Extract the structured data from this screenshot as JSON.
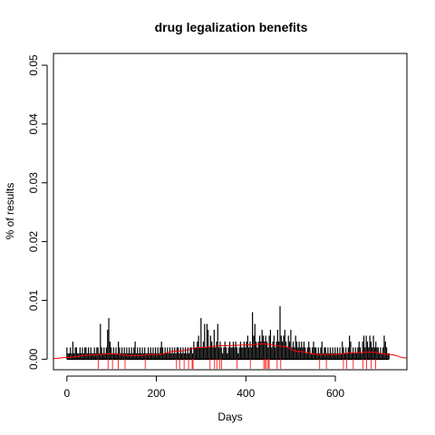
{
  "chart_data": {
    "type": "bar",
    "title": "drug legalization benefits",
    "xlabel": "Days",
    "ylabel": "% of results",
    "xlim": [
      -30,
      760
    ],
    "ylim": [
      -0.0018,
      0.052
    ],
    "x_ticks": [
      0,
      200,
      400,
      600
    ],
    "y_ticks": [
      0.0,
      0.01,
      0.02,
      0.03,
      0.04,
      0.05
    ],
    "y_tick_labels": [
      "0.00",
      "0.01",
      "0.02",
      "0.03",
      "0.04",
      "0.05"
    ],
    "colors": {
      "bars": "#000000",
      "smooth_line": "#ff0000",
      "rug": "#ff0000",
      "axes": "#000000"
    },
    "bars": {
      "x_start": 0,
      "x_end": 720,
      "values": [
        0.002,
        0.001,
        0.001,
        0.002,
        0.001,
        0.003,
        0.001,
        0.002,
        0.002,
        0.001,
        0.001,
        0.002,
        0.001,
        0.002,
        0.001,
        0.002,
        0.002,
        0.001,
        0.002,
        0.001,
        0.002,
        0.001,
        0.001,
        0.002,
        0.001,
        0.002,
        0.002,
        0.001,
        0.006,
        0.002,
        0.001,
        0.002,
        0.001,
        0.002,
        0.005,
        0.007,
        0.003,
        0.002,
        0.001,
        0.002,
        0.001,
        0.002,
        0.001,
        0.003,
        0.002,
        0.001,
        0.002,
        0.001,
        0.002,
        0.001,
        0.002,
        0.001,
        0.002,
        0.001,
        0.002,
        0.001,
        0.002,
        0.003,
        0.001,
        0.002,
        0.001,
        0.002,
        0.001,
        0.002,
        0.001,
        0.002,
        0.001,
        0.001,
        0.002,
        0.001,
        0.002,
        0.001,
        0.002,
        0.001,
        0.002,
        0.001,
        0.002,
        0.001,
        0.002,
        0.003,
        0.002,
        0.001,
        0.002,
        0.001,
        0.002,
        0.001,
        0.002,
        0.001,
        0.002,
        0.001,
        0.002,
        0.001,
        0.002,
        0.002,
        0.001,
        0.002,
        0.001,
        0.002,
        0.001,
        0.002,
        0.001,
        0.002,
        0.001,
        0.002,
        0.002,
        0.001,
        0.003,
        0.002,
        0.002,
        0.003,
        0.004,
        0.002,
        0.007,
        0.002,
        0.003,
        0.006,
        0.002,
        0.006,
        0.005,
        0.002,
        0.004,
        0.003,
        0.002,
        0.005,
        0.002,
        0.003,
        0.006,
        0.002,
        0.003,
        0.002,
        0.001,
        0.002,
        0.003,
        0.002,
        0.001,
        0.002,
        0.003,
        0.002,
        0.002,
        0.003,
        0.002,
        0.003,
        0.002,
        0.001,
        0.002,
        0.003,
        0.002,
        0.002,
        0.003,
        0.002,
        0.003,
        0.004,
        0.002,
        0.003,
        0.002,
        0.008,
        0.004,
        0.006,
        0.003,
        0.002,
        0.003,
        0.004,
        0.003,
        0.005,
        0.004,
        0.003,
        0.004,
        0.003,
        0.002,
        0.004,
        0.005,
        0.002,
        0.003,
        0.004,
        0.002,
        0.003,
        0.005,
        0.003,
        0.009,
        0.004,
        0.003,
        0.004,
        0.005,
        0.003,
        0.002,
        0.004,
        0.003,
        0.005,
        0.002,
        0.003,
        0.002,
        0.004,
        0.003,
        0.002,
        0.003,
        0.002,
        0.003,
        0.002,
        0.003,
        0.002,
        0.001,
        0.002,
        0.003,
        0.002,
        0.001,
        0.002,
        0.003,
        0.002,
        0.002,
        0.001,
        0.002,
        0.001,
        0.002,
        0.003,
        0.001,
        0.002,
        0.002,
        0.001,
        0.002,
        0.001,
        0.002,
        0.001,
        0.002,
        0.001,
        0.002,
        0.001,
        0.002,
        0.001,
        0.002,
        0.001,
        0.003,
        0.002,
        0.001,
        0.002,
        0.001,
        0.002,
        0.004,
        0.003,
        0.001,
        0.002,
        0.001,
        0.002,
        0.001,
        0.002,
        0.003,
        0.002,
        0.001,
        0.003,
        0.004,
        0.002,
        0.004,
        0.003,
        0.002,
        0.004,
        0.003,
        0.002,
        0.004,
        0.002,
        0.003,
        0.002,
        0.002,
        0.001,
        0.002,
        0.001,
        0.002,
        0.004,
        0.003,
        0.002,
        0.001,
        0.001
      ]
    },
    "smooth_line": {
      "x": [
        -30,
        0,
        50,
        100,
        150,
        200,
        250,
        300,
        350,
        400,
        440,
        480,
        520,
        560,
        600,
        640,
        680,
        720,
        760
      ],
      "y": [
        0.0001,
        0.0003,
        0.0007,
        0.0009,
        0.0006,
        0.0008,
        0.0014,
        0.002,
        0.0023,
        0.0024,
        0.0026,
        0.0022,
        0.0013,
        0.0008,
        0.0008,
        0.0011,
        0.0012,
        0.0008,
        0.0002
      ]
    },
    "rug": {
      "x": [
        70,
        92,
        102,
        115,
        130,
        175,
        245,
        252,
        262,
        272,
        280,
        282,
        320,
        330,
        335,
        342,
        346,
        380,
        410,
        440,
        443,
        446,
        450,
        452,
        470,
        478,
        565,
        580,
        618,
        625,
        640,
        662,
        670,
        680,
        690
      ]
    }
  }
}
